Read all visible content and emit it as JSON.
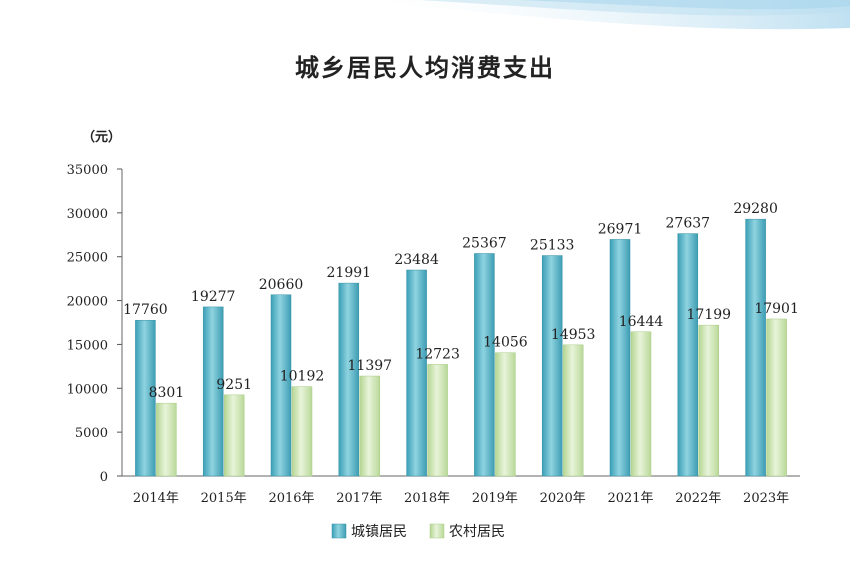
{
  "chart_data": {
    "type": "bar",
    "title": "城乡居民人均消费支出",
    "ylabel": "（元）",
    "xlabel": "",
    "categories": [
      "2014年",
      "2015年",
      "2016年",
      "2017年",
      "2018年",
      "2019年",
      "2020年",
      "2021年",
      "2022年",
      "2023年"
    ],
    "series": [
      {
        "name": "城镇居民",
        "values": [
          17760,
          19277,
          20660,
          21991,
          23484,
          25367,
          25133,
          26971,
          27637,
          29280
        ],
        "color": "#4ab0c4"
      },
      {
        "name": "农村居民",
        "values": [
          8301,
          9251,
          10192,
          11397,
          12723,
          14056,
          14953,
          16444,
          17199,
          17901
        ],
        "color": "#c8e2aa"
      }
    ],
    "ylim": [
      0,
      35000
    ],
    "yticks": [
      0,
      5000,
      10000,
      15000,
      20000,
      25000,
      30000,
      35000
    ],
    "grid": false,
    "legend": "bottom-center"
  }
}
